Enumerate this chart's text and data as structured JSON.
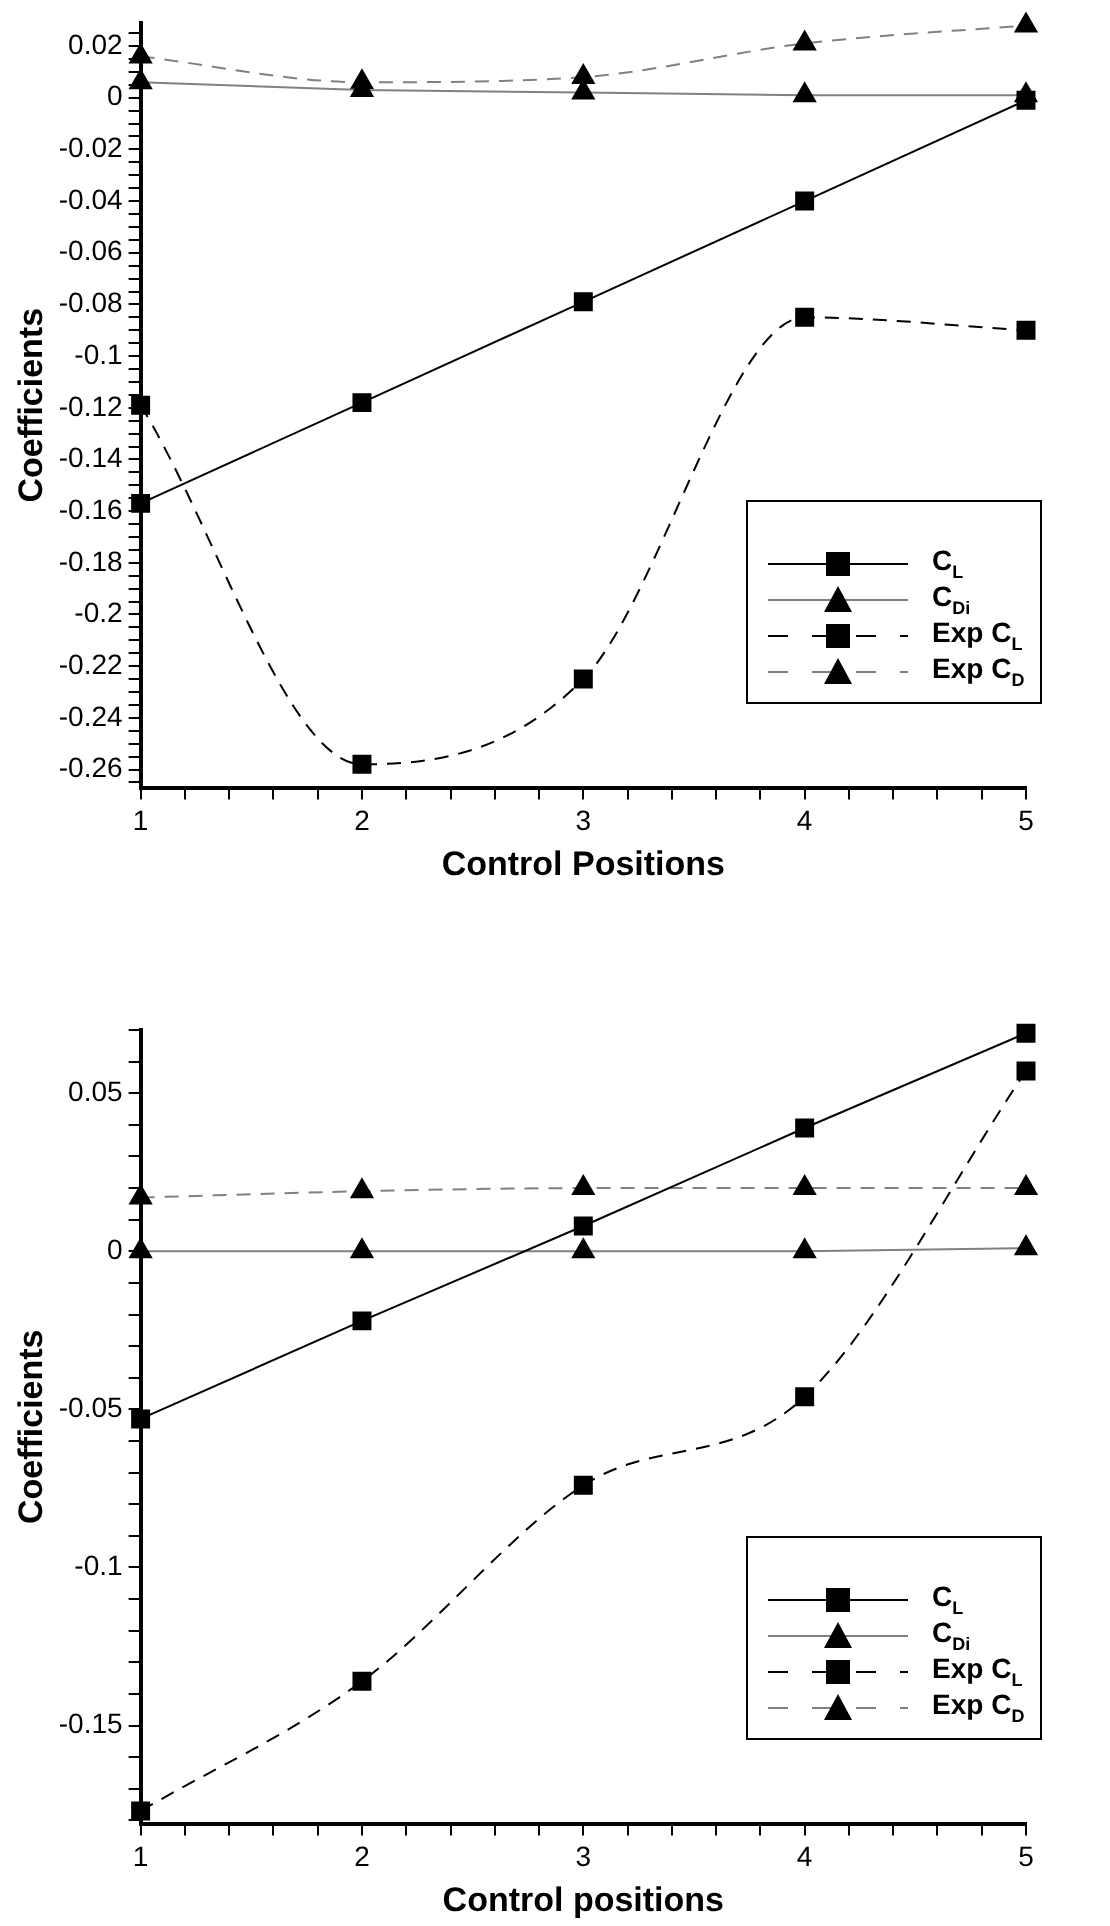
{
  "chart_data": [
    {
      "type": "line",
      "xlabel": "Control Positions",
      "ylabel": "Coefficients",
      "legend": "bottom right",
      "x": [
        1,
        2,
        3,
        4,
        5
      ],
      "xlim": [
        1,
        5
      ],
      "xticks": [
        1,
        {
          "value": 1.2,
          "label": null
        },
        {
          "value": 1.4,
          "label": null
        },
        {
          "value": 1.6,
          "label": null
        },
        {
          "value": 1.8,
          "label": null
        },
        2,
        {
          "value": 2.2,
          "label": null
        },
        {
          "value": 2.4,
          "label": null
        },
        {
          "value": 2.6,
          "label": null
        },
        {
          "value": 2.8,
          "label": null
        },
        3,
        {
          "value": 3.2,
          "label": null
        },
        {
          "value": 3.4,
          "label": null
        },
        {
          "value": 3.6,
          "label": null
        },
        {
          "value": 3.8,
          "label": null
        },
        4,
        {
          "value": 4.2,
          "label": null
        },
        {
          "value": 4.4,
          "label": null
        },
        {
          "value": 4.6,
          "label": null
        },
        {
          "value": 4.8,
          "label": null
        },
        5
      ],
      "ylim": [
        -0.267,
        0.029
      ],
      "yticks": [
        {
          "value": -0.265,
          "label": null
        },
        -0.26,
        {
          "value": -0.255,
          "label": null
        },
        {
          "value": -0.25,
          "label": null
        },
        {
          "value": -0.245,
          "label": null
        },
        -0.24,
        {
          "value": -0.235,
          "label": null
        },
        {
          "value": -0.23,
          "label": null
        },
        {
          "value": -0.225,
          "label": null
        },
        -0.22,
        {
          "value": -0.215,
          "label": null
        },
        {
          "value": -0.21,
          "label": null
        },
        {
          "value": -0.205,
          "label": null
        },
        -0.2,
        {
          "value": -0.195,
          "label": null
        },
        {
          "value": -0.19,
          "label": null
        },
        {
          "value": -0.185,
          "label": null
        },
        -0.18,
        {
          "value": -0.175,
          "label": null
        },
        {
          "value": -0.17,
          "label": null
        },
        {
          "value": -0.165,
          "label": null
        },
        -0.16,
        {
          "value": -0.155,
          "label": null
        },
        {
          "value": -0.15,
          "label": null
        },
        {
          "value": -0.145,
          "label": null
        },
        -0.14,
        {
          "value": -0.135,
          "label": null
        },
        {
          "value": -0.13,
          "label": null
        },
        {
          "value": -0.125,
          "label": null
        },
        -0.12,
        {
          "value": -0.115,
          "label": null
        },
        {
          "value": -0.11,
          "label": null
        },
        {
          "value": -0.105,
          "label": null
        },
        -0.1,
        {
          "value": -0.095,
          "label": null
        },
        {
          "value": -0.09,
          "label": null
        },
        {
          "value": -0.085,
          "label": null
        },
        -0.08,
        {
          "value": -0.075,
          "label": null
        },
        {
          "value": -0.07,
          "label": null
        },
        {
          "value": -0.065,
          "label": null
        },
        -0.06,
        {
          "value": -0.055,
          "label": null
        },
        {
          "value": -0.05,
          "label": null
        },
        {
          "value": -0.045,
          "label": null
        },
        -0.04,
        {
          "value": -0.035,
          "label": null
        },
        {
          "value": -0.03,
          "label": null
        },
        {
          "value": -0.025,
          "label": null
        },
        -0.02,
        {
          "value": -0.015,
          "label": null
        },
        {
          "value": -0.01,
          "label": null
        },
        {
          "value": -0.005,
          "label": null
        },
        0,
        {
          "value": 0.005,
          "label": null
        },
        {
          "value": 0.01,
          "label": null
        },
        {
          "value": 0.015,
          "label": null
        },
        0.02,
        {
          "value": 0.025,
          "label": null
        }
      ],
      "series": [
        {
          "name": "C$_{L}$",
          "color": "#000000",
          "marker": "square",
          "line_style": "solid",
          "values": [
            -0.157,
            -0.118,
            -0.079,
            -0.04,
            -0.001
          ]
        },
        {
          "name": "C$_{Di}$",
          "color": "#808080",
          "marker": "triangle",
          "line_style": "solid",
          "values": [
            0.006,
            0.003,
            0.002,
            0.001,
            0.001
          ]
        },
        {
          "name": "Exp C$_{L}$",
          "color": "#000000",
          "marker": "square",
          "line_style": "dashed",
          "values": [
            -0.119,
            -0.258,
            -0.225,
            -0.085,
            -0.09
          ]
        },
        {
          "name": "Exp C$_{D}$",
          "color": "#808080",
          "marker": "triangle",
          "line_style": "dashed",
          "values": [
            0.016,
            0.006,
            0.008,
            0.021,
            0.028
          ]
        }
      ]
    },
    {
      "type": "line",
      "xlabel": "Control positions",
      "ylabel": "Coefficients",
      "legend": "bottom right",
      "x": [
        1,
        2,
        3,
        4,
        5
      ],
      "xlim": [
        1,
        5
      ],
      "xticks": [
        1,
        {
          "value": 1.2,
          "label": null
        },
        {
          "value": 1.4,
          "label": null
        },
        {
          "value": 1.6,
          "label": null
        },
        {
          "value": 1.8,
          "label": null
        },
        2,
        {
          "value": 2.2,
          "label": null
        },
        {
          "value": 2.4,
          "label": null
        },
        {
          "value": 2.6,
          "label": null
        },
        {
          "value": 2.8,
          "label": null
        },
        3,
        {
          "value": 3.2,
          "label": null
        },
        {
          "value": 3.4,
          "label": null
        },
        {
          "value": 3.6,
          "label": null
        },
        {
          "value": 3.8,
          "label": null
        },
        4,
        {
          "value": 4.2,
          "label": null
        },
        {
          "value": 4.4,
          "label": null
        },
        {
          "value": 4.6,
          "label": null
        },
        {
          "value": 4.8,
          "label": null
        },
        5
      ],
      "ylim": [
        -0.181,
        0.07
      ],
      "yticks": [
        {
          "value": -0.18,
          "label": null
        },
        {
          "value": -0.17,
          "label": null
        },
        {
          "value": -0.16,
          "label": null
        },
        -0.15,
        {
          "value": -0.14,
          "label": null
        },
        {
          "value": -0.13,
          "label": null
        },
        {
          "value": -0.12,
          "label": null
        },
        {
          "value": -0.11,
          "label": null
        },
        -0.1,
        {
          "value": -0.09,
          "label": null
        },
        {
          "value": -0.08,
          "label": null
        },
        {
          "value": -0.07,
          "label": null
        },
        {
          "value": -0.06,
          "label": null
        },
        -0.05,
        {
          "value": -0.04,
          "label": null
        },
        {
          "value": -0.03,
          "label": null
        },
        {
          "value": -0.02,
          "label": null
        },
        {
          "value": -0.01,
          "label": null
        },
        0,
        {
          "value": 0.01,
          "label": null
        },
        {
          "value": 0.02,
          "label": null
        },
        {
          "value": 0.03,
          "label": null
        },
        {
          "value": 0.04,
          "label": null
        },
        0.05,
        {
          "value": 0.06,
          "label": null
        },
        {
          "value": 0.07,
          "label": null
        }
      ],
      "series": [
        {
          "name": "C$_{L}$",
          "color": "#000000",
          "marker": "square",
          "line_style": "solid",
          "values": [
            -0.053,
            -0.022,
            0.008,
            0.039,
            0.069
          ]
        },
        {
          "name": "C$_{Di}$",
          "color": "#808080",
          "marker": "triangle",
          "line_style": "solid",
          "values": [
            0,
            0,
            0,
            0,
            0.001
          ]
        },
        {
          "name": "Exp C$_{L}$",
          "color": "#000000",
          "marker": "square",
          "line_style": "dashed",
          "values": [
            -0.177,
            -0.136,
            -0.074,
            -0.046,
            0.057
          ]
        },
        {
          "name": "Exp C$_{D}$",
          "color": "#808080",
          "marker": "triangle",
          "line_style": "dashed",
          "values": [
            0.017,
            0.019,
            0.02,
            0.02,
            0.02
          ]
        }
      ]
    }
  ]
}
